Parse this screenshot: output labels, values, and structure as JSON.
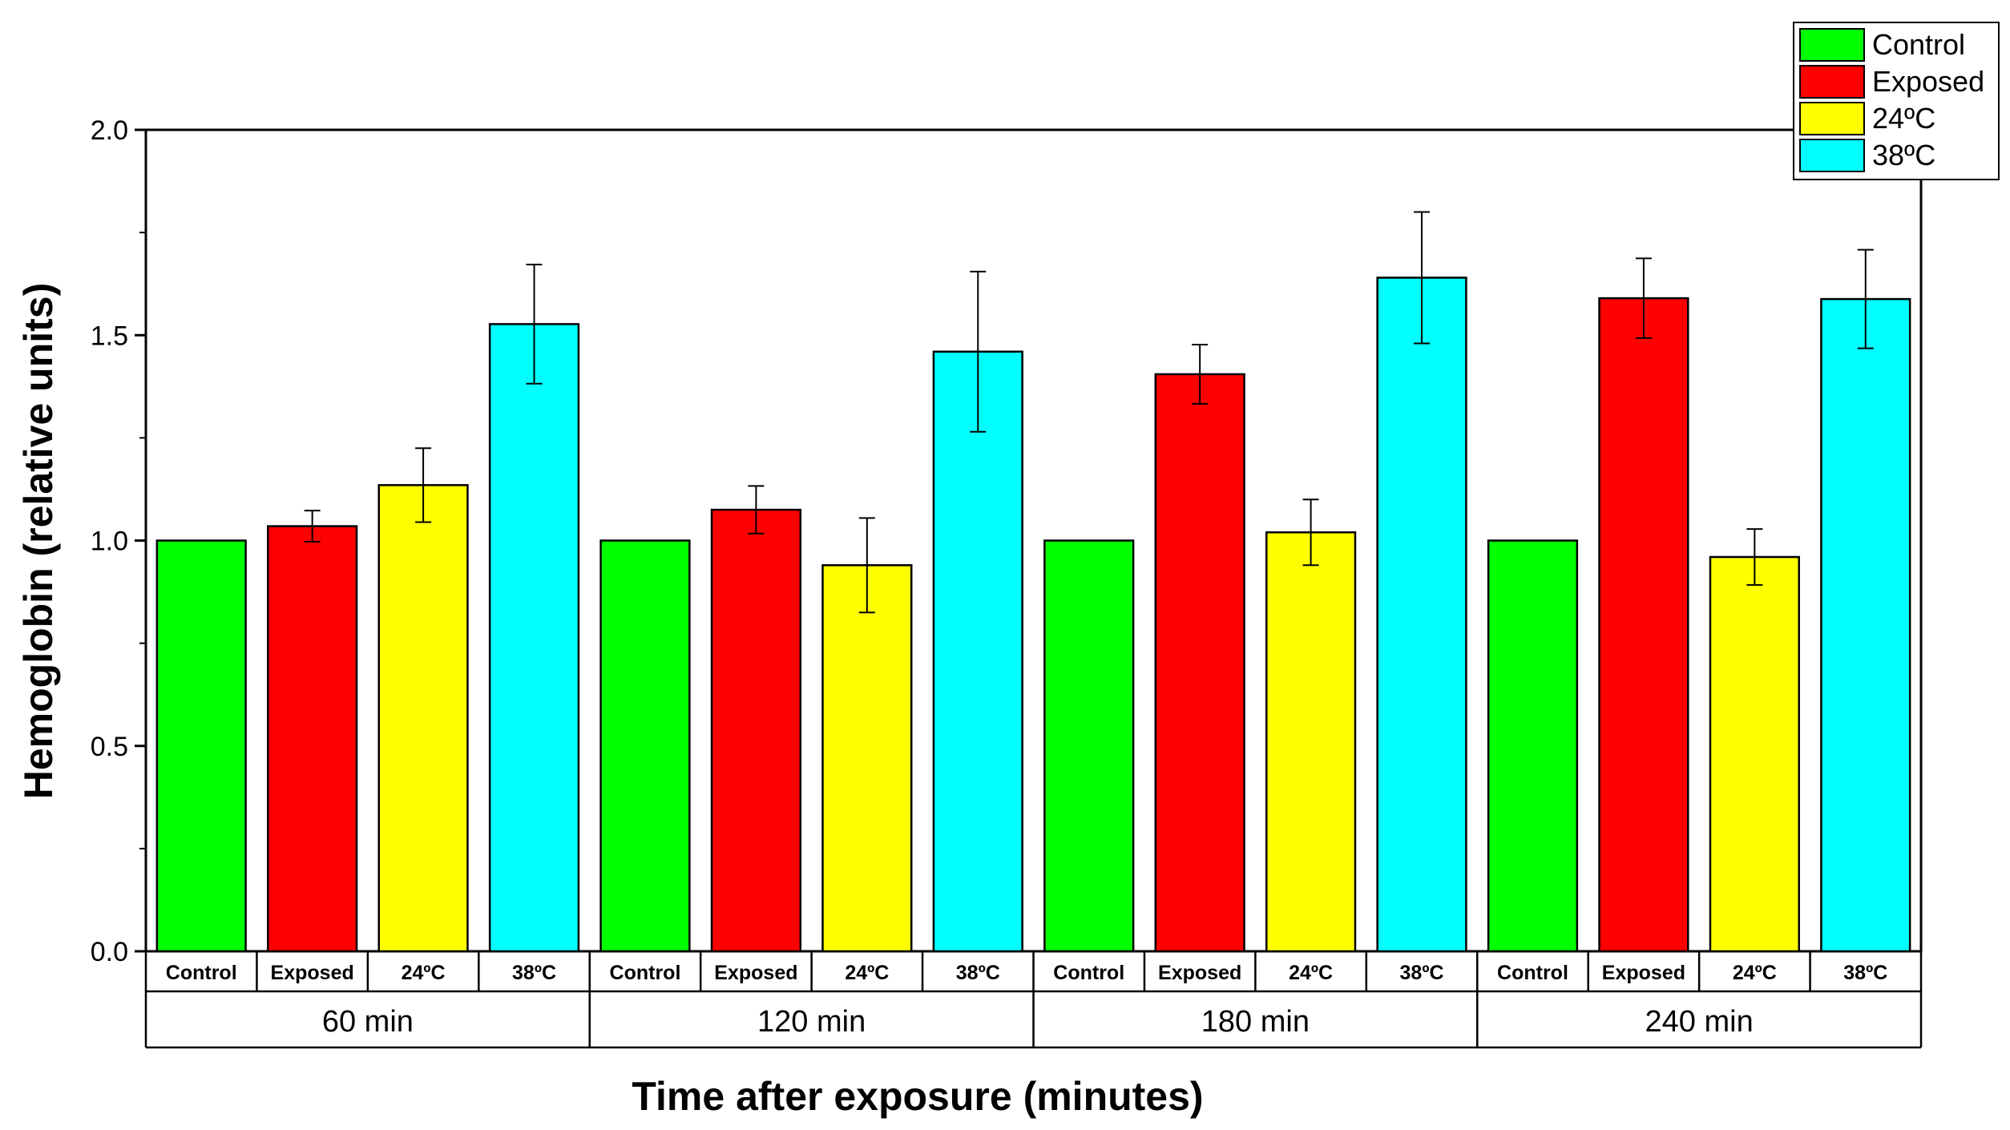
{
  "chart_data": {
    "type": "bar",
    "title": "",
    "ylabel": "Hemoglobin (relative units)",
    "xlabel": "Time after exposure (minutes)",
    "ylim": [
      0,
      2.0
    ],
    "yticks": [
      "0.0",
      "0.5",
      "1.0",
      "1.5",
      "2.0"
    ],
    "groups": [
      "60 min",
      "120 min",
      "180 min",
      "240 min"
    ],
    "categories": [
      "Control",
      "Exposed",
      "24ºC",
      "38ºC"
    ],
    "series": [
      {
        "name": "Control",
        "color": "#00ff00",
        "values": [
          1.0,
          1.0,
          1.0,
          1.0
        ],
        "errors": [
          0,
          0,
          0,
          0
        ]
      },
      {
        "name": "Exposed",
        "color": "#ff0000",
        "values": [
          1.035,
          1.075,
          1.405,
          1.59
        ],
        "errors": [
          0.038,
          0.058,
          0.072,
          0.097
        ]
      },
      {
        "name": "24ºC",
        "color": "#ffff00",
        "values": [
          1.135,
          0.94,
          1.02,
          0.96
        ],
        "errors": [
          0.09,
          0.115,
          0.08,
          0.068
        ]
      },
      {
        "name": "38ºC",
        "color": "#00ffff",
        "values": [
          1.527,
          1.46,
          1.64,
          1.588
        ],
        "errors": [
          0.145,
          0.195,
          0.16,
          0.12
        ]
      }
    ],
    "legend": {
      "position": "top-right",
      "entries": [
        "Control",
        "Exposed",
        "24ºC",
        "38ºC"
      ]
    }
  }
}
